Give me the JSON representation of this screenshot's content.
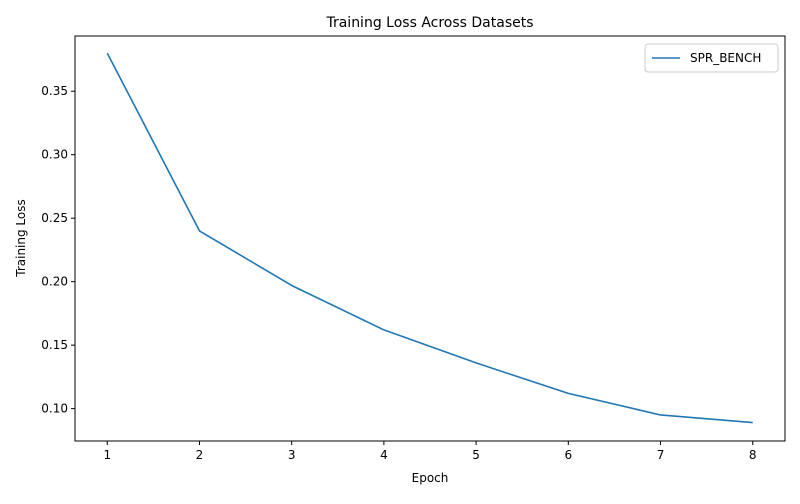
{
  "chart_data": {
    "type": "line",
    "title": "Training Loss Across Datasets",
    "xlabel": "Epoch",
    "ylabel": "Training Loss",
    "x": [
      1,
      2,
      3,
      4,
      5,
      6,
      7,
      8
    ],
    "xticks": [
      1,
      2,
      3,
      4,
      5,
      6,
      7,
      8
    ],
    "yticks": [
      0.1,
      0.15,
      0.2,
      0.25,
      0.3,
      0.35
    ],
    "xlim": [
      0.65,
      8.35
    ],
    "ylim": [
      0.0745,
      0.3935
    ],
    "grid": false,
    "legend_position": "top-right",
    "series": [
      {
        "name": "SPR_BENCH",
        "color": "#1f77b4",
        "values": [
          0.38,
          0.24,
          0.197,
          0.162,
          0.136,
          0.112,
          0.095,
          0.089
        ]
      }
    ]
  }
}
